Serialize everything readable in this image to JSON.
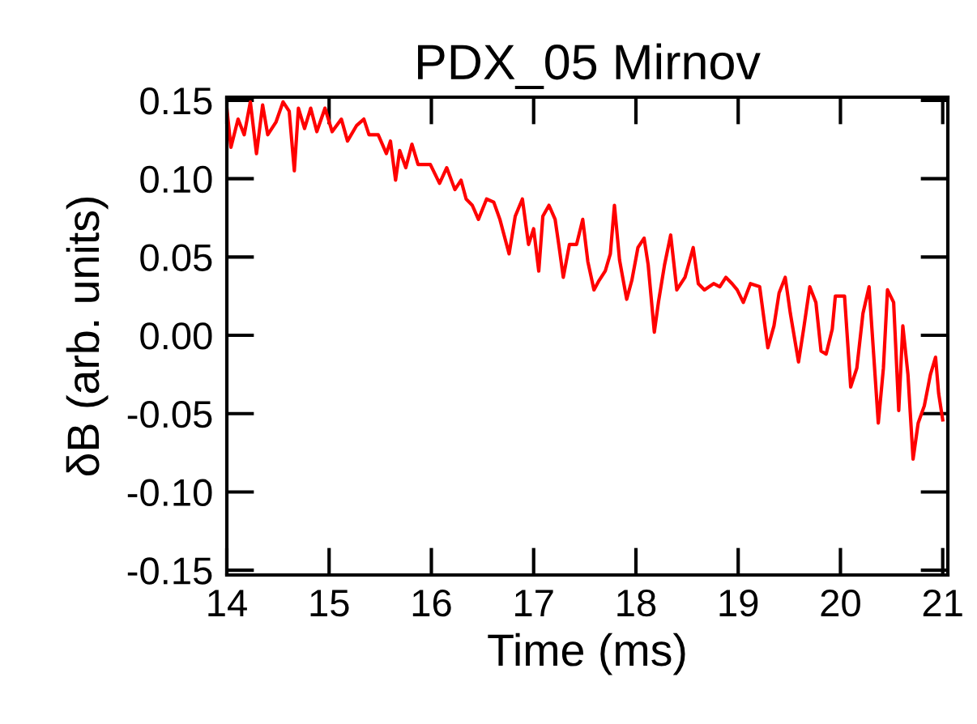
{
  "chart_data": {
    "type": "line",
    "title": "PDX_05 Mirnov",
    "xlabel": "Time (ms)",
    "ylabel": "δB (arb. units)",
    "xlim": [
      14,
      21.05
    ],
    "ylim": [
      -0.153,
      0.152
    ],
    "xticks": [
      14,
      15,
      16,
      17,
      18,
      19,
      20,
      21
    ],
    "yticks": [
      {
        "value": -0.15,
        "label": "-0.15"
      },
      {
        "value": -0.1,
        "label": "-0.10"
      },
      {
        "value": -0.05,
        "label": "-0.05"
      },
      {
        "value": 0,
        "label": "0.00"
      },
      {
        "value": 0.05,
        "label": "0.05"
      },
      {
        "value": 0.1,
        "label": "0.10"
      },
      {
        "value": 0.15,
        "label": "0.15"
      }
    ],
    "grid": false,
    "legend": false,
    "marker": "none",
    "line_style": "solid",
    "series": [
      {
        "color": "#ff0000",
        "x": [
          14.0,
          14.04,
          14.11,
          14.17,
          14.23,
          14.29,
          14.35,
          14.4,
          14.48,
          14.55,
          14.61,
          14.66,
          14.7,
          14.76,
          14.82,
          14.88,
          14.96,
          15.03,
          15.12,
          15.18,
          15.27,
          15.34,
          15.39,
          15.48,
          15.56,
          15.6,
          15.65,
          15.69,
          15.75,
          15.81,
          15.87,
          15.93,
          15.99,
          16.08,
          16.15,
          16.23,
          16.29,
          16.34,
          16.4,
          16.46,
          16.54,
          16.61,
          16.67,
          16.76,
          16.82,
          16.89,
          16.95,
          17.0,
          17.05,
          17.09,
          17.15,
          17.21,
          17.25,
          17.29,
          17.35,
          17.42,
          17.48,
          17.53,
          17.59,
          17.64,
          17.7,
          17.75,
          17.79,
          17.84,
          17.91,
          17.96,
          18.02,
          18.08,
          18.12,
          18.18,
          18.22,
          18.28,
          18.34,
          18.4,
          18.48,
          18.56,
          18.61,
          18.67,
          18.76,
          18.82,
          18.88,
          18.94,
          18.99,
          19.05,
          19.12,
          19.21,
          19.29,
          19.35,
          19.4,
          19.46,
          19.51,
          19.59,
          19.64,
          19.7,
          19.76,
          19.81,
          19.86,
          19.92,
          19.95,
          20.04,
          20.1,
          20.16,
          20.22,
          20.28,
          20.37,
          20.42,
          20.46,
          20.52,
          20.57,
          20.61,
          20.66,
          20.71,
          20.76,
          20.82,
          20.88,
          20.93,
          20.96,
          21.0
        ],
        "values": [
          0.145,
          0.12,
          0.138,
          0.128,
          0.149,
          0.116,
          0.147,
          0.128,
          0.136,
          0.149,
          0.143,
          0.105,
          0.145,
          0.132,
          0.145,
          0.13,
          0.145,
          0.13,
          0.138,
          0.124,
          0.134,
          0.138,
          0.128,
          0.128,
          0.116,
          0.124,
          0.099,
          0.118,
          0.107,
          0.122,
          0.109,
          0.109,
          0.109,
          0.097,
          0.107,
          0.093,
          0.099,
          0.087,
          0.083,
          0.074,
          0.087,
          0.085,
          0.074,
          0.052,
          0.076,
          0.087,
          0.058,
          0.068,
          0.041,
          0.076,
          0.083,
          0.074,
          0.056,
          0.037,
          0.058,
          0.058,
          0.074,
          0.047,
          0.029,
          0.035,
          0.041,
          0.052,
          0.083,
          0.048,
          0.023,
          0.035,
          0.056,
          0.062,
          0.045,
          0.002,
          0.021,
          0.045,
          0.064,
          0.029,
          0.037,
          0.056,
          0.033,
          0.029,
          0.033,
          0.031,
          0.037,
          0.033,
          0.029,
          0.021,
          0.033,
          0.031,
          -0.008,
          0.006,
          0.027,
          0.037,
          0.014,
          -0.017,
          0.004,
          0.031,
          0.021,
          -0.01,
          -0.012,
          0.004,
          0.025,
          0.025,
          -0.033,
          -0.021,
          0.014,
          0.031,
          -0.056,
          -0.021,
          0.029,
          0.021,
          -0.048,
          0.006,
          -0.025,
          -0.079,
          -0.056,
          -0.045,
          -0.025,
          -0.014,
          -0.037,
          -0.054
        ]
      }
    ]
  }
}
